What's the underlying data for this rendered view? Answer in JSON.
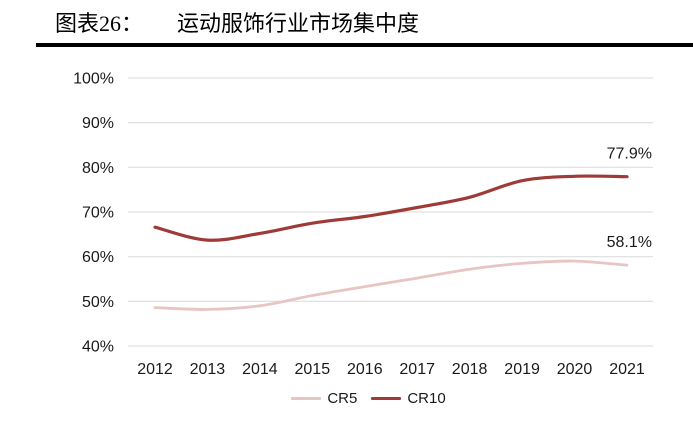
{
  "header": {
    "title_prefix": "图表26：",
    "title": "运动服饰行业市场集中度"
  },
  "chart_data": {
    "type": "line",
    "title": "运动服饰行业市场集中度",
    "x": [
      "2012",
      "2013",
      "2014",
      "2015",
      "2016",
      "2017",
      "2018",
      "2019",
      "2020",
      "2021"
    ],
    "series": [
      {
        "name": "CR5",
        "color": "#e7c5c4",
        "stroke_width": 2.8,
        "values": [
          48.6,
          48.2,
          49.0,
          51.3,
          53.3,
          55.2,
          57.2,
          58.5,
          59.0,
          58.1
        ]
      },
      {
        "name": "CR10",
        "color": "#9e3b39",
        "stroke_width": 3.2,
        "values": [
          66.6,
          63.7,
          65.2,
          67.5,
          69.0,
          71.0,
          73.3,
          77.0,
          78.0,
          77.9
        ]
      }
    ],
    "yticks": [
      40,
      50,
      60,
      70,
      80,
      90,
      100
    ],
    "ytick_suffix": "%",
    "ylim": [
      40,
      100
    ],
    "grid": true,
    "gridline_color": "#d9d9d9",
    "axis_text_color": "#1a1a1a",
    "legend_position": "bottom",
    "end_labels": [
      {
        "series": "CR10",
        "text": "77.9%"
      },
      {
        "series": "CR5",
        "text": "58.1%"
      }
    ]
  }
}
